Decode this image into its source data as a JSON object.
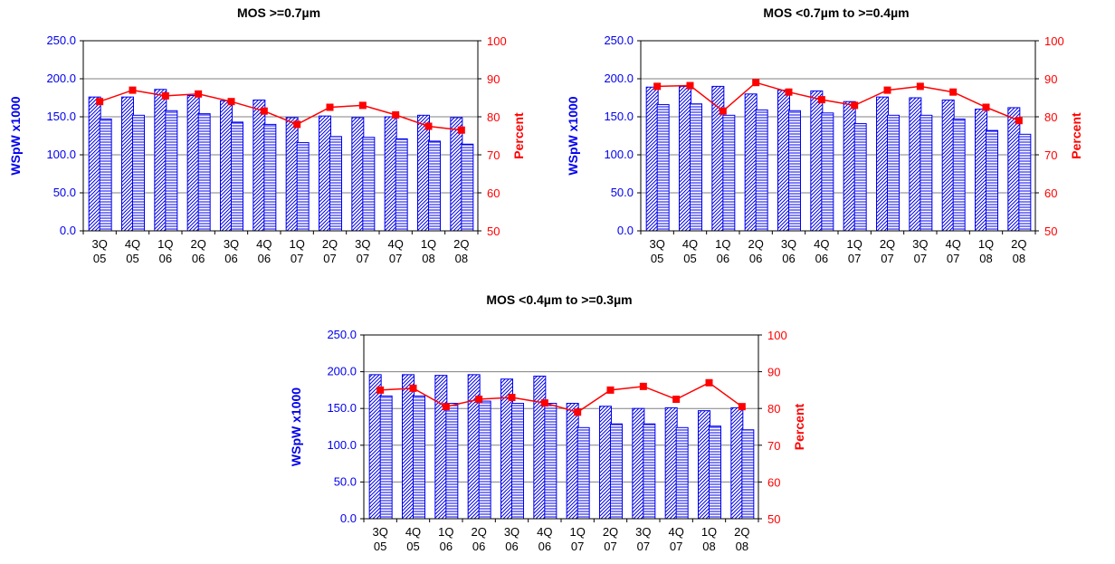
{
  "chart_data": [
    {
      "type": "bar",
      "title": "MOS >=0.7µm",
      "categories": [
        [
          "3Q",
          "05"
        ],
        [
          "4Q",
          "05"
        ],
        [
          "1Q",
          "06"
        ],
        [
          "2Q",
          "06"
        ],
        [
          "3Q",
          "06"
        ],
        [
          "4Q",
          "06"
        ],
        [
          "1Q",
          "07"
        ],
        [
          "2Q",
          "07"
        ],
        [
          "3Q",
          "07"
        ],
        [
          "4Q",
          "07"
        ],
        [
          "1Q",
          "08"
        ],
        [
          "2Q",
          "08"
        ]
      ],
      "ylabel": "WSpW x1000",
      "y2label": "Percent",
      "ylim": [
        0,
        250
      ],
      "y2lim": [
        50,
        100
      ],
      "yticks": [
        "0.0",
        "50.0",
        "100.0",
        "150.0",
        "200.0",
        "250.0"
      ],
      "y2ticks": [
        "50",
        "60",
        "70",
        "80",
        "90",
        "100"
      ],
      "grid": true,
      "series": [
        {
          "values": [
            176,
            176,
            186,
            178,
            171,
            172,
            149,
            151,
            149,
            150,
            152,
            149
          ],
          "pattern": "diagonal",
          "color": "#0000ee"
        },
        {
          "values": [
            147,
            152,
            158,
            154,
            143,
            140,
            116,
            124,
            123,
            121,
            118,
            114
          ],
          "pattern": "horizontal",
          "color": "#0000ee"
        },
        {
          "values": [
            84,
            87,
            85.5,
            86,
            84,
            81.5,
            78,
            82.5,
            83,
            80.5,
            77.5,
            76.5
          ],
          "type": "line",
          "axis": "right",
          "color": "#ff0000"
        }
      ]
    },
    {
      "type": "bar",
      "title": "MOS <0.7µm to >=0.4µm",
      "categories": [
        [
          "3Q",
          "05"
        ],
        [
          "4Q",
          "05"
        ],
        [
          "1Q",
          "06"
        ],
        [
          "2Q",
          "06"
        ],
        [
          "3Q",
          "06"
        ],
        [
          "4Q",
          "06"
        ],
        [
          "1Q",
          "07"
        ],
        [
          "2Q",
          "07"
        ],
        [
          "3Q",
          "07"
        ],
        [
          "4Q",
          "07"
        ],
        [
          "1Q",
          "08"
        ],
        [
          "2Q",
          "08"
        ]
      ],
      "ylabel": "WSpW x1000",
      "y2label": "Percent",
      "ylim": [
        0,
        250
      ],
      "y2lim": [
        50,
        100
      ],
      "yticks": [
        "0.0",
        "50.0",
        "100.0",
        "150.0",
        "200.0",
        "250.0"
      ],
      "y2ticks": [
        "50",
        "60",
        "70",
        "80",
        "90",
        "100"
      ],
      "grid": true,
      "series": [
        {
          "values": [
            189,
            190,
            190,
            180,
            185,
            184,
            170,
            176,
            175,
            172,
            160,
            162
          ],
          "pattern": "diagonal",
          "color": "#0000ee"
        },
        {
          "values": [
            166,
            167,
            152,
            159,
            158,
            155,
            141,
            152,
            152,
            147,
            132,
            127
          ],
          "pattern": "horizontal",
          "color": "#0000ee"
        },
        {
          "values": [
            88,
            88.2,
            81.5,
            89,
            86.5,
            84.5,
            83,
            87,
            88,
            86.5,
            82.5,
            79
          ],
          "type": "line",
          "axis": "right",
          "color": "#ff0000"
        }
      ]
    },
    {
      "type": "bar",
      "title": "MOS <0.4µm to >=0.3µm",
      "categories": [
        [
          "3Q",
          "05"
        ],
        [
          "4Q",
          "05"
        ],
        [
          "1Q",
          "06"
        ],
        [
          "2Q",
          "06"
        ],
        [
          "3Q",
          "06"
        ],
        [
          "4Q",
          "06"
        ],
        [
          "1Q",
          "07"
        ],
        [
          "2Q",
          "07"
        ],
        [
          "3Q",
          "07"
        ],
        [
          "4Q",
          "07"
        ],
        [
          "1Q",
          "08"
        ],
        [
          "2Q",
          "08"
        ]
      ],
      "ylabel": "WSpW x1000",
      "y2label": "Percent",
      "ylim": [
        0,
        250
      ],
      "y2lim": [
        50,
        100
      ],
      "yticks": [
        "0.0",
        "50.0",
        "100.0",
        "150.0",
        "200.0",
        "250.0"
      ],
      "y2ticks": [
        "50",
        "60",
        "70",
        "80",
        "90",
        "100"
      ],
      "grid": true,
      "series": [
        {
          "values": [
            196,
            196,
            195,
            196,
            190,
            194,
            157,
            153,
            150,
            151,
            147,
            151
          ],
          "pattern": "diagonal",
          "color": "#0000ee"
        },
        {
          "values": [
            167,
            167,
            157,
            160,
            157,
            157,
            124,
            129,
            129,
            124,
            126,
            121
          ],
          "pattern": "horizontal",
          "color": "#0000ee"
        },
        {
          "values": [
            85,
            85.5,
            80.5,
            82.5,
            83,
            81.5,
            79,
            85,
            86,
            82.5,
            87,
            80.5
          ],
          "type": "line",
          "axis": "right",
          "color": "#ff0000"
        }
      ]
    }
  ]
}
